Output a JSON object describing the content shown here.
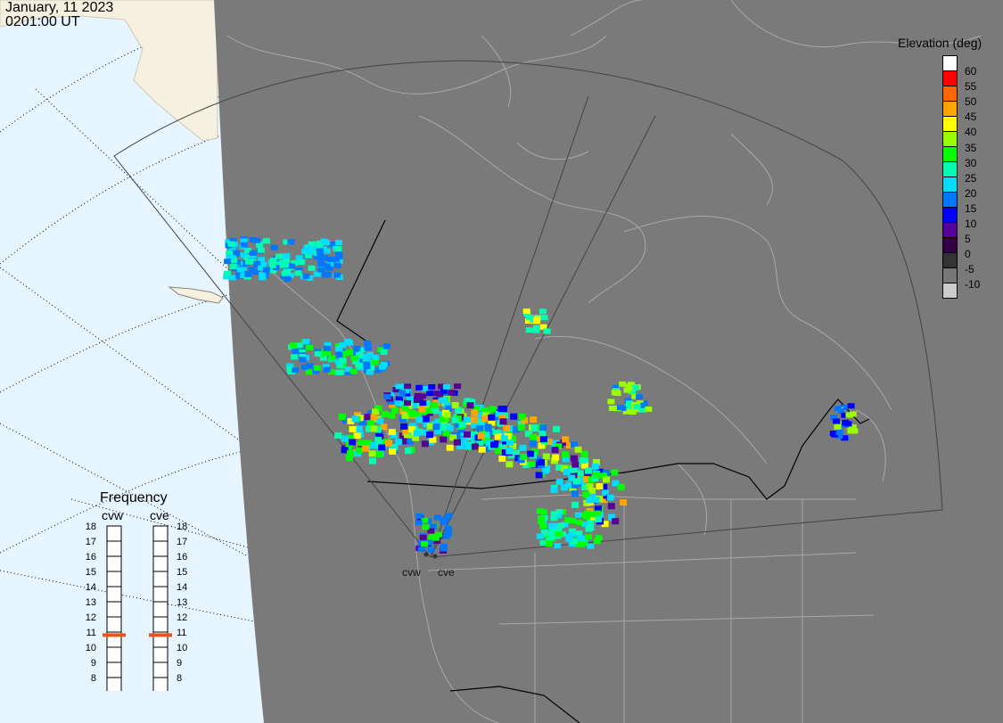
{
  "timestamp": {
    "date": "January, 11 2023",
    "time": "0201:00 UT"
  },
  "colorbar": {
    "title": "Elevation (deg)",
    "ticks": [
      "60",
      "55",
      "50",
      "45",
      "40",
      "35",
      "30",
      "25",
      "20",
      "15",
      "10",
      "5",
      "0",
      "-5",
      "-10"
    ],
    "colors": [
      "#ffffff",
      "#ff0000",
      "#ff6600",
      "#ffa500",
      "#ffff00",
      "#99ff00",
      "#00ff00",
      "#00ffb0",
      "#00ddff",
      "#0077ff",
      "#0000ff",
      "#550099",
      "#330044",
      "#333333",
      "#777777",
      "#cccccc"
    ]
  },
  "frequency": {
    "title": "Frequency",
    "radars": [
      "cvw",
      "cve"
    ],
    "scale": [
      "18",
      "17",
      "16",
      "15",
      "14",
      "13",
      "12",
      "11",
      "10",
      "9",
      "8"
    ],
    "current_mhz": {
      "cvw": 10.8,
      "cve": 10.8
    },
    "marker_color": "#e8541c"
  },
  "sites": {
    "west": "cvw",
    "east": "cve"
  },
  "map_colors": {
    "ocean": "#e6f5ff",
    "land_day": "#f5f0e0",
    "night": "#7a7a7a",
    "outline": "#a9a9a9",
    "fov": "#444444"
  }
}
